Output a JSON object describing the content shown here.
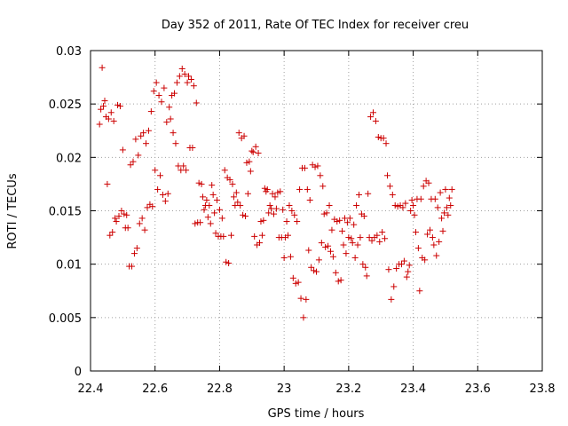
{
  "chart_data": {
    "type": "scatter",
    "title": "Day 352 of 2011, Rate Of TEC Index for receiver creu",
    "xlabel": "GPS time / hours",
    "ylabel": "ROTI / TECUs",
    "xlim": [
      22.4,
      23.8
    ],
    "ylim": [
      0,
      0.03
    ],
    "grid": true,
    "marker": "plus",
    "color": "#cc0000",
    "x_ticks": [
      "22.4",
      "22.6",
      "22.8",
      "23",
      "23.2",
      "23.4",
      "23.6",
      "23.8"
    ],
    "y_ticks": [
      "0",
      "0.005",
      "0.01",
      "0.015",
      "0.02",
      "0.025",
      "0.03"
    ],
    "x_tick_values": [
      22.4,
      22.6,
      22.8,
      23.0,
      23.2,
      23.4,
      23.6,
      23.8
    ],
    "y_tick_values": [
      0,
      0.005,
      0.01,
      0.015,
      0.02,
      0.025,
      0.03
    ],
    "points": [
      [
        22.428,
        0.0231
      ],
      [
        22.432,
        0.0245
      ],
      [
        22.436,
        0.0284
      ],
      [
        22.44,
        0.0248
      ],
      [
        22.444,
        0.0253
      ],
      [
        22.448,
        0.0238
      ],
      [
        22.452,
        0.0175
      ],
      [
        22.456,
        0.0236
      ],
      [
        22.46,
        0.0127
      ],
      [
        22.464,
        0.0242
      ],
      [
        22.468,
        0.013
      ],
      [
        22.472,
        0.0234
      ],
      [
        22.476,
        0.0143
      ],
      [
        22.48,
        0.014
      ],
      [
        22.484,
        0.0249
      ],
      [
        22.488,
        0.0145
      ],
      [
        22.492,
        0.0248
      ],
      [
        22.496,
        0.015
      ],
      [
        22.5,
        0.0207
      ],
      [
        22.504,
        0.0147
      ],
      [
        22.508,
        0.0134
      ],
      [
        22.512,
        0.0146
      ],
      [
        22.516,
        0.0134
      ],
      [
        22.52,
        0.0098
      ],
      [
        22.524,
        0.0193
      ],
      [
        22.528,
        0.0098
      ],
      [
        22.532,
        0.0196
      ],
      [
        22.536,
        0.011
      ],
      [
        22.54,
        0.0217
      ],
      [
        22.544,
        0.0115
      ],
      [
        22.548,
        0.0202
      ],
      [
        22.552,
        0.0138
      ],
      [
        22.556,
        0.022
      ],
      [
        22.56,
        0.0143
      ],
      [
        22.564,
        0.0223
      ],
      [
        22.568,
        0.0132
      ],
      [
        22.572,
        0.0213
      ],
      [
        22.576,
        0.0153
      ],
      [
        22.58,
        0.0225
      ],
      [
        22.584,
        0.0156
      ],
      [
        22.588,
        0.0243
      ],
      [
        22.592,
        0.0154
      ],
      [
        22.596,
        0.0262
      ],
      [
        22.6,
        0.0188
      ],
      [
        22.604,
        0.027
      ],
      [
        22.608,
        0.017
      ],
      [
        22.612,
        0.0258
      ],
      [
        22.616,
        0.0183
      ],
      [
        22.62,
        0.0252
      ],
      [
        22.624,
        0.0165
      ],
      [
        22.628,
        0.0265
      ],
      [
        22.632,
        0.0159
      ],
      [
        22.636,
        0.0233
      ],
      [
        22.64,
        0.0166
      ],
      [
        22.644,
        0.0247
      ],
      [
        22.648,
        0.0236
      ],
      [
        22.652,
        0.0258
      ],
      [
        22.656,
        0.0223
      ],
      [
        22.66,
        0.026
      ],
      [
        22.664,
        0.0213
      ],
      [
        22.668,
        0.027
      ],
      [
        22.672,
        0.0192
      ],
      [
        22.676,
        0.0276
      ],
      [
        22.68,
        0.0188
      ],
      [
        22.684,
        0.0283
      ],
      [
        22.688,
        0.0192
      ],
      [
        22.692,
        0.0278
      ],
      [
        22.696,
        0.0188
      ],
      [
        22.7,
        0.027
      ],
      [
        22.704,
        0.0276
      ],
      [
        22.708,
        0.0209
      ],
      [
        22.712,
        0.0273
      ],
      [
        22.716,
        0.0209
      ],
      [
        22.72,
        0.0267
      ],
      [
        22.724,
        0.0138
      ],
      [
        22.728,
        0.0251
      ],
      [
        22.732,
        0.0139
      ],
      [
        22.736,
        0.0176
      ],
      [
        22.74,
        0.0139
      ],
      [
        22.744,
        0.0175
      ],
      [
        22.748,
        0.0163
      ],
      [
        22.752,
        0.0151
      ],
      [
        22.756,
        0.0155
      ],
      [
        22.76,
        0.016
      ],
      [
        22.764,
        0.0144
      ],
      [
        22.768,
        0.0155
      ],
      [
        22.772,
        0.0138
      ],
      [
        22.776,
        0.0174
      ],
      [
        22.78,
        0.0165
      ],
      [
        22.784,
        0.0148
      ],
      [
        22.788,
        0.0129
      ],
      [
        22.792,
        0.016
      ],
      [
        22.796,
        0.0126
      ],
      [
        22.8,
        0.0151
      ],
      [
        22.804,
        0.0126
      ],
      [
        22.808,
        0.0143
      ],
      [
        22.812,
        0.0126
      ],
      [
        22.816,
        0.0188
      ],
      [
        22.82,
        0.0102
      ],
      [
        22.824,
        0.0181
      ],
      [
        22.828,
        0.0101
      ],
      [
        22.832,
        0.0179
      ],
      [
        22.836,
        0.0127
      ],
      [
        22.84,
        0.0175
      ],
      [
        22.844,
        0.0163
      ],
      [
        22.848,
        0.0155
      ],
      [
        22.852,
        0.0167
      ],
      [
        22.856,
        0.0158
      ],
      [
        22.86,
        0.0223
      ],
      [
        22.864,
        0.0155
      ],
      [
        22.868,
        0.0218
      ],
      [
        22.872,
        0.0146
      ],
      [
        22.876,
        0.022
      ],
      [
        22.88,
        0.0145
      ],
      [
        22.884,
        0.0195
      ],
      [
        22.888,
        0.0166
      ],
      [
        22.892,
        0.0196
      ],
      [
        22.896,
        0.0187
      ],
      [
        22.9,
        0.0206
      ],
      [
        22.904,
        0.0205
      ],
      [
        22.908,
        0.0126
      ],
      [
        22.912,
        0.021
      ],
      [
        22.916,
        0.0118
      ],
      [
        22.92,
        0.0204
      ],
      [
        22.924,
        0.012
      ],
      [
        22.928,
        0.014
      ],
      [
        22.932,
        0.0127
      ],
      [
        22.936,
        0.0141
      ],
      [
        22.94,
        0.0171
      ],
      [
        22.944,
        0.0168
      ],
      [
        22.948,
        0.017
      ],
      [
        22.952,
        0.0148
      ],
      [
        22.956,
        0.0155
      ],
      [
        22.96,
        0.0152
      ],
      [
        22.964,
        0.0166
      ],
      [
        22.968,
        0.0147
      ],
      [
        22.972,
        0.0163
      ],
      [
        22.976,
        0.0152
      ],
      [
        22.98,
        0.0167
      ],
      [
        22.984,
        0.0125
      ],
      [
        22.988,
        0.0168
      ],
      [
        22.992,
        0.0125
      ],
      [
        22.996,
        0.0151
      ],
      [
        23.0,
        0.0106
      ],
      [
        23.004,
        0.0125
      ],
      [
        23.008,
        0.014
      ],
      [
        23.012,
        0.0127
      ],
      [
        23.016,
        0.0155
      ],
      [
        23.02,
        0.0107
      ],
      [
        23.024,
        0.015
      ],
      [
        23.028,
        0.0087
      ],
      [
        23.032,
        0.0146
      ],
      [
        23.036,
        0.0082
      ],
      [
        23.04,
        0.014
      ],
      [
        23.044,
        0.0083
      ],
      [
        23.048,
        0.017
      ],
      [
        23.052,
        0.0068
      ],
      [
        23.056,
        0.019
      ],
      [
        23.06,
        0.005
      ],
      [
        23.064,
        0.019
      ],
      [
        23.068,
        0.0067
      ],
      [
        23.072,
        0.017
      ],
      [
        23.076,
        0.0113
      ],
      [
        23.08,
        0.016
      ],
      [
        23.084,
        0.0097
      ],
      [
        23.088,
        0.0193
      ],
      [
        23.092,
        0.0094
      ],
      [
        23.096,
        0.0191
      ],
      [
        23.1,
        0.0093
      ],
      [
        23.104,
        0.0192
      ],
      [
        23.108,
        0.0104
      ],
      [
        23.112,
        0.0183
      ],
      [
        23.116,
        0.012
      ],
      [
        23.12,
        0.0173
      ],
      [
        23.124,
        0.0147
      ],
      [
        23.128,
        0.0116
      ],
      [
        23.132,
        0.0148
      ],
      [
        23.136,
        0.0117
      ],
      [
        23.14,
        0.0155
      ],
      [
        23.144,
        0.0112
      ],
      [
        23.148,
        0.0132
      ],
      [
        23.152,
        0.0107
      ],
      [
        23.156,
        0.0142
      ],
      [
        23.16,
        0.0092
      ],
      [
        23.164,
        0.014
      ],
      [
        23.168,
        0.0084
      ],
      [
        23.172,
        0.0141
      ],
      [
        23.176,
        0.0085
      ],
      [
        23.18,
        0.0131
      ],
      [
        23.184,
        0.0118
      ],
      [
        23.188,
        0.0143
      ],
      [
        23.192,
        0.011
      ],
      [
        23.196,
        0.0139
      ],
      [
        23.2,
        0.0125
      ],
      [
        23.204,
        0.0143
      ],
      [
        23.208,
        0.0124
      ],
      [
        23.212,
        0.012
      ],
      [
        23.216,
        0.0137
      ],
      [
        23.22,
        0.0106
      ],
      [
        23.224,
        0.0155
      ],
      [
        23.228,
        0.0118
      ],
      [
        23.232,
        0.0165
      ],
      [
        23.236,
        0.0125
      ],
      [
        23.24,
        0.0147
      ],
      [
        23.244,
        0.01
      ],
      [
        23.248,
        0.0145
      ],
      [
        23.252,
        0.0097
      ],
      [
        23.256,
        0.0089
      ],
      [
        23.26,
        0.0166
      ],
      [
        23.264,
        0.0125
      ],
      [
        23.268,
        0.0238
      ],
      [
        23.272,
        0.0122
      ],
      [
        23.276,
        0.0242
      ],
      [
        23.28,
        0.0125
      ],
      [
        23.284,
        0.0234
      ],
      [
        23.288,
        0.0127
      ],
      [
        23.292,
        0.0219
      ],
      [
        23.296,
        0.0121
      ],
      [
        23.3,
        0.0218
      ],
      [
        23.304,
        0.013
      ],
      [
        23.308,
        0.0218
      ],
      [
        23.312,
        0.0124
      ],
      [
        23.316,
        0.0213
      ],
      [
        23.32,
        0.0183
      ],
      [
        23.324,
        0.0095
      ],
      [
        23.328,
        0.0173
      ],
      [
        23.332,
        0.0067
      ],
      [
        23.336,
        0.0165
      ],
      [
        23.34,
        0.0079
      ],
      [
        23.344,
        0.0155
      ],
      [
        23.348,
        0.0096
      ],
      [
        23.352,
        0.0154
      ],
      [
        23.356,
        0.01
      ],
      [
        23.36,
        0.0155
      ],
      [
        23.364,
        0.01
      ],
      [
        23.368,
        0.0153
      ],
      [
        23.372,
        0.0103
      ],
      [
        23.376,
        0.0157
      ],
      [
        23.38,
        0.0088
      ],
      [
        23.384,
        0.0093
      ],
      [
        23.388,
        0.0099
      ],
      [
        23.392,
        0.015
      ],
      [
        23.396,
        0.016
      ],
      [
        23.4,
        0.0155
      ],
      [
        23.404,
        0.0146
      ],
      [
        23.408,
        0.013
      ],
      [
        23.412,
        0.0161
      ],
      [
        23.416,
        0.0115
      ],
      [
        23.42,
        0.0075
      ],
      [
        23.424,
        0.0161
      ],
      [
        23.428,
        0.0106
      ],
      [
        23.432,
        0.0173
      ],
      [
        23.436,
        0.0104
      ],
      [
        23.44,
        0.0178
      ],
      [
        23.444,
        0.0128
      ],
      [
        23.448,
        0.0176
      ],
      [
        23.452,
        0.0132
      ],
      [
        23.456,
        0.0161
      ],
      [
        23.46,
        0.0125
      ],
      [
        23.464,
        0.0118
      ],
      [
        23.468,
        0.0161
      ],
      [
        23.472,
        0.0108
      ],
      [
        23.476,
        0.0153
      ],
      [
        23.48,
        0.0121
      ],
      [
        23.484,
        0.0167
      ],
      [
        23.488,
        0.0143
      ],
      [
        23.492,
        0.0131
      ],
      [
        23.496,
        0.0148
      ],
      [
        23.5,
        0.017
      ],
      [
        23.504,
        0.0153
      ],
      [
        23.508,
        0.0146
      ],
      [
        23.512,
        0.0162
      ],
      [
        23.516,
        0.0155
      ],
      [
        23.52,
        0.017
      ]
    ]
  }
}
